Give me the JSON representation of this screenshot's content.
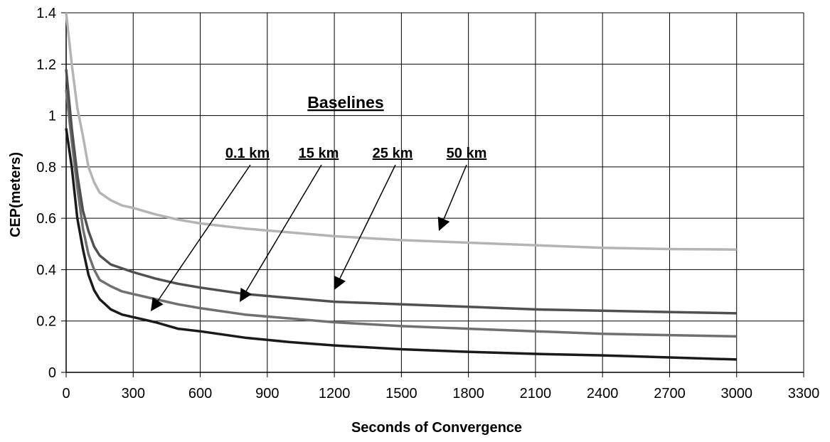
{
  "chart_data": {
    "type": "line",
    "title": "",
    "xlabel": "Seconds of Convergence",
    "ylabel": "CEP(meters)",
    "xlim": [
      0,
      3300
    ],
    "ylim": [
      0,
      1.4
    ],
    "x_ticks": [
      "0",
      "300",
      "600",
      "900",
      "1200",
      "1500",
      "1800",
      "2100",
      "2400",
      "2700",
      "3000",
      "3300"
    ],
    "y_ticks": [
      "0",
      "0.2",
      "0.4",
      "0.6",
      "0.8",
      "1",
      "1.2",
      "1.4"
    ],
    "grid": true,
    "legend_title": "Baselines",
    "series": [
      {
        "name": "0.1 km",
        "color": "#1a1a1a",
        "points": [
          [
            0,
            0.95
          ],
          [
            25,
            0.8
          ],
          [
            50,
            0.6
          ],
          [
            75,
            0.48
          ],
          [
            100,
            0.38
          ],
          [
            125,
            0.32
          ],
          [
            150,
            0.285
          ],
          [
            200,
            0.245
          ],
          [
            250,
            0.225
          ],
          [
            300,
            0.215
          ],
          [
            400,
            0.195
          ],
          [
            500,
            0.17
          ],
          [
            600,
            0.16
          ],
          [
            800,
            0.135
          ],
          [
            1000,
            0.118
          ],
          [
            1200,
            0.105
          ],
          [
            1500,
            0.09
          ],
          [
            1800,
            0.08
          ],
          [
            2100,
            0.072
          ],
          [
            2400,
            0.066
          ],
          [
            2700,
            0.058
          ],
          [
            3000,
            0.05
          ]
        ]
      },
      {
        "name": "15 km",
        "color": "#707070",
        "points": [
          [
            0,
            1.1
          ],
          [
            25,
            0.9
          ],
          [
            50,
            0.72
          ],
          [
            75,
            0.56
          ],
          [
            100,
            0.46
          ],
          [
            125,
            0.4
          ],
          [
            150,
            0.36
          ],
          [
            200,
            0.335
          ],
          [
            250,
            0.315
          ],
          [
            300,
            0.305
          ],
          [
            400,
            0.285
          ],
          [
            500,
            0.265
          ],
          [
            600,
            0.25
          ],
          [
            800,
            0.225
          ],
          [
            1000,
            0.21
          ],
          [
            1200,
            0.195
          ],
          [
            1500,
            0.18
          ],
          [
            1800,
            0.17
          ],
          [
            2100,
            0.16
          ],
          [
            2400,
            0.15
          ],
          [
            2700,
            0.145
          ],
          [
            3000,
            0.14
          ]
        ]
      },
      {
        "name": "25 km",
        "color": "#505050",
        "points": [
          [
            0,
            1.18
          ],
          [
            25,
            0.95
          ],
          [
            50,
            0.77
          ],
          [
            75,
            0.63
          ],
          [
            100,
            0.55
          ],
          [
            125,
            0.49
          ],
          [
            150,
            0.455
          ],
          [
            200,
            0.42
          ],
          [
            250,
            0.405
          ],
          [
            300,
            0.39
          ],
          [
            400,
            0.365
          ],
          [
            500,
            0.345
          ],
          [
            600,
            0.33
          ],
          [
            800,
            0.305
          ],
          [
            1000,
            0.29
          ],
          [
            1200,
            0.275
          ],
          [
            1500,
            0.265
          ],
          [
            1800,
            0.255
          ],
          [
            2100,
            0.245
          ],
          [
            2400,
            0.24
          ],
          [
            2700,
            0.235
          ],
          [
            3000,
            0.23
          ]
        ]
      },
      {
        "name": "50 km",
        "color": "#b4b4b4",
        "points": [
          [
            0,
            1.4
          ],
          [
            25,
            1.2
          ],
          [
            50,
            1.03
          ],
          [
            75,
            0.92
          ],
          [
            100,
            0.8
          ],
          [
            125,
            0.74
          ],
          [
            150,
            0.7
          ],
          [
            200,
            0.67
          ],
          [
            250,
            0.65
          ],
          [
            300,
            0.64
          ],
          [
            400,
            0.615
          ],
          [
            500,
            0.595
          ],
          [
            600,
            0.58
          ],
          [
            800,
            0.56
          ],
          [
            1000,
            0.545
          ],
          [
            1200,
            0.53
          ],
          [
            1500,
            0.515
          ],
          [
            1800,
            0.505
          ],
          [
            2100,
            0.495
          ],
          [
            2400,
            0.485
          ],
          [
            2700,
            0.48
          ],
          [
            3000,
            0.478
          ]
        ]
      }
    ],
    "annotations": [
      {
        "label": "0.1 km",
        "text_at": [
          0.1,
          0.8
        ],
        "arrow_to": [
          0.1,
          0.2
        ]
      },
      {
        "label": "15 km",
        "text_at": [
          0.1,
          0.8
        ],
        "arrow_to": [
          0.1,
          0.2
        ]
      },
      {
        "label": "25 km",
        "text_at": [
          0.1,
          0.8
        ],
        "arrow_to": [
          0.1,
          0.2
        ]
      },
      {
        "label": "50 km",
        "text_at": [
          0.1,
          0.8
        ],
        "arrow_to": [
          0.1,
          0.2
        ]
      }
    ]
  }
}
